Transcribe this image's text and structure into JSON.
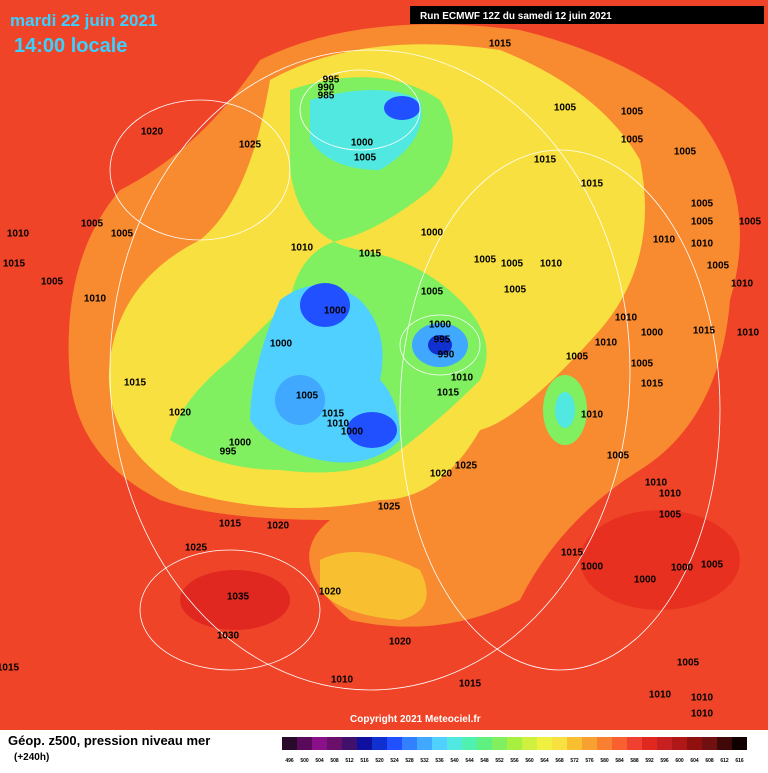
{
  "header": {
    "date": "mardi 22 juin 2021",
    "time": "14:00 locale",
    "run": "Run ECMWF 12Z du samedi 12 juin 2021"
  },
  "copyright": "Copyright 2021 Meteociel.fr",
  "legend": {
    "title": "Géop. z500, pression niveau mer",
    "lead": "(+240h)",
    "colorbar": {
      "ticks": [
        496,
        500,
        504,
        508,
        512,
        516,
        520,
        524,
        528,
        532,
        536,
        540,
        544,
        548,
        552,
        556,
        560,
        564,
        568,
        572,
        576,
        580,
        584,
        588,
        592,
        596,
        600,
        604,
        608,
        612,
        616
      ],
      "colors": [
        "#2a0a2a",
        "#5a0a5a",
        "#8a108a",
        "#6a106a",
        "#40106a",
        "#1010a0",
        "#1030d0",
        "#2050ff",
        "#3080ff",
        "#40a8ff",
        "#50d0ff",
        "#50e8e0",
        "#50f0b0",
        "#60f080",
        "#80f060",
        "#a8f040",
        "#d0f040",
        "#f0f040",
        "#f8e040",
        "#f8c030",
        "#f8a030",
        "#f88030",
        "#f86030",
        "#f04030",
        "#e02820",
        "#c82020",
        "#b01818",
        "#901010",
        "#701010",
        "#400808",
        "#100000"
      ]
    }
  },
  "isobar_labels": [
    1015,
    995,
    990,
    985,
    1020,
    1025,
    1000,
    1005,
    1005,
    1005,
    1005,
    1005,
    1015,
    1015,
    1005,
    1005,
    1005,
    1010,
    1005,
    1005,
    1010,
    1015,
    1000,
    1005,
    1005,
    1010,
    1010,
    1010,
    1005,
    1015,
    1005,
    1010,
    1005,
    1005,
    1010,
    1000,
    1000,
    995,
    990,
    1010,
    1010,
    1000,
    1005,
    1015,
    1010,
    1000,
    1015,
    1010,
    1015,
    1005,
    1015,
    1005,
    1020,
    1015,
    1010,
    1000,
    1010,
    1000,
    995,
    1025,
    1020,
    1005,
    1010,
    1010,
    1025,
    1015,
    1020,
    1005,
    1025,
    1015,
    1000,
    1000,
    1000,
    1005,
    1035,
    1020,
    1030,
    1020,
    1015,
    1005,
    1010,
    1015,
    1010,
    1010,
    1010
  ]
}
